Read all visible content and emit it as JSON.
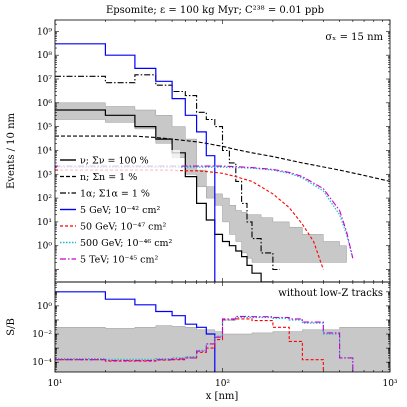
{
  "chart_data": [
    {
      "type": "line",
      "title": "Epsomite; ε = 100 kg Myr; C²³⁸ = 0.01 ppb",
      "annotation": "σₓ = 15 nm",
      "ylabel": "Events / 10 nm",
      "xscale": "log",
      "yscale": "log",
      "xlim": [
        10,
        1000
      ],
      "ylim": [
        0.03,
        3000000000
      ],
      "yticks": [
        {
          "v": 1,
          "t": "10⁰"
        },
        {
          "v": 10,
          "t": "10¹"
        },
        {
          "v": 100,
          "t": "10²"
        },
        {
          "v": 1000,
          "t": "10³"
        },
        {
          "v": 10000,
          "t": "10⁴"
        },
        {
          "v": 100000,
          "t": "10⁵"
        },
        {
          "v": 1000000,
          "t": "10⁶"
        },
        {
          "v": 10000000,
          "t": "10⁷"
        },
        {
          "v": 100000000,
          "t": "10⁸"
        },
        {
          "v": 1000000000,
          "t": "10⁹"
        }
      ],
      "legend": "middle-left",
      "series": [
        {
          "name": "ν; Σν = 100 %",
          "color": "#000000",
          "dash": "",
          "width": 1.2,
          "step": true,
          "x": [
            10,
            20,
            30,
            40,
            50,
            60,
            70,
            80,
            90,
            100,
            110,
            120,
            130,
            140,
            150,
            170,
            200
          ],
          "y": [
            500000,
            300000,
            100000,
            30000,
            8000,
            800,
            60,
            12,
            3,
            1.5,
            1.0,
            0.6,
            0.35,
            0.15,
            0.07,
            0.03,
            0.01
          ]
        },
        {
          "name": "n; Σn = 1 %",
          "color": "#000000",
          "dash": "4,2",
          "width": 1.1,
          "x": [
            10,
            20,
            30,
            40,
            50,
            60,
            70,
            80,
            90,
            100,
            120,
            150,
            200,
            300,
            500,
            700,
            1000
          ],
          "y": [
            40000,
            40000,
            40000,
            35000,
            30000,
            26000,
            23000,
            20000,
            17000,
            15000,
            11000,
            8000,
            5500,
            3000,
            1500,
            900,
            500
          ]
        },
        {
          "name": "1α; Σ1α = 1 %",
          "color": "#000000",
          "dash": "6,2,1.5,2",
          "width": 1.1,
          "step": true,
          "x": [
            10,
            20,
            30,
            40,
            50,
            60,
            70,
            80,
            90,
            100,
            110,
            120,
            130,
            140,
            150,
            170,
            200
          ],
          "y": [
            13000000,
            7000000,
            15000000,
            5500000,
            3000000,
            2000000,
            400000,
            200000,
            100000,
            10000,
            3000,
            500,
            60,
            10,
            2,
            0.5,
            0.1
          ]
        },
        {
          "name": "5 GeV; 10⁻⁴² cm²",
          "color": "#0000ff",
          "dash": "",
          "width": 1.2,
          "step": true,
          "x": [
            10,
            20,
            30,
            40,
            50,
            60,
            70,
            80,
            90
          ],
          "y": [
            300000000,
            100000000,
            28000000,
            8000000,
            1500000,
            300000,
            60000,
            6000,
            0.01
          ]
        },
        {
          "name": "50 GeV; 10⁻⁴⁷ cm²",
          "color": "#ff0000",
          "dash": "3,2",
          "width": 1.1,
          "x": [
            10,
            20,
            30,
            40,
            50,
            60,
            70,
            80,
            90,
            100,
            120,
            150,
            200,
            250,
            300,
            350,
            400
          ],
          "y": [
            1500,
            1500,
            1500,
            1500,
            1500,
            1400,
            1400,
            1300,
            1200,
            1100,
            800,
            500,
            150,
            40,
            8,
            1.5,
            0.1
          ]
        },
        {
          "name": "500 GeV; 10⁻⁴⁶ cm²",
          "color": "#17becf",
          "dash": "1.5,1.5",
          "width": 1.2,
          "x": [
            10,
            20,
            30,
            40,
            50,
            60,
            70,
            80,
            90,
            100,
            120,
            150,
            200,
            250,
            300,
            400,
            500,
            550,
            600
          ],
          "y": [
            2000,
            2000,
            2000,
            2000,
            2000,
            2000,
            2000,
            2000,
            2000,
            2000,
            1900,
            1800,
            1500,
            1100,
            700,
            200,
            20,
            3,
            0.3
          ]
        },
        {
          "name": "5 TeV; 10⁻⁴⁵ cm²",
          "color": "#cc00cc",
          "dash": "6,2,1.5,2",
          "width": 1.1,
          "x": [
            10,
            20,
            30,
            40,
            50,
            60,
            70,
            80,
            90,
            100,
            120,
            150,
            200,
            250,
            300,
            400,
            500,
            550,
            600
          ],
          "y": [
            2200,
            2200,
            2200,
            2200,
            2200,
            2200,
            2200,
            2200,
            2200,
            2200,
            2100,
            1900,
            1600,
            1200,
            800,
            250,
            30,
            4,
            0.3
          ]
        }
      ],
      "band": {
        "x": [
          10,
          20,
          30,
          40,
          50,
          60,
          70,
          80,
          90,
          100,
          110,
          120,
          130,
          140,
          150,
          170,
          200,
          250,
          300,
          400,
          500
        ],
        "lo": [
          200000,
          150000,
          80000,
          20000,
          5000,
          1000,
          300,
          100,
          50,
          10,
          3,
          1.5,
          0.5,
          0.3,
          0.2,
          0.2,
          0.2,
          0.2,
          0.2,
          0.2,
          0.2
        ],
        "hi": [
          1000000,
          700000,
          500000,
          300000,
          100000,
          30000,
          1500,
          300,
          150,
          100,
          50,
          30,
          25,
          20,
          20,
          15,
          10,
          6,
          3,
          1.5,
          1
        ],
        "color": "#c8c8c8"
      }
    },
    {
      "type": "line",
      "ylabel": "S/B",
      "xlabel": "x [nm]",
      "annotation": "without low-Z tracks",
      "xscale": "log",
      "yscale": "log",
      "xlim": [
        10,
        1000
      ],
      "ylim": [
        2e-05,
        50
      ],
      "yticks": [
        {
          "v": 0.0001,
          "t": "10⁻⁴"
        },
        {
          "v": 0.01,
          "t": "10⁻²"
        },
        {
          "v": 1,
          "t": "10⁰"
        }
      ],
      "xticks": [
        {
          "v": 10,
          "t": "10¹"
        },
        {
          "v": 100,
          "t": "10²"
        },
        {
          "v": 1000,
          "t": "10³"
        }
      ],
      "series": [
        {
          "name": "5 GeV; 10⁻⁴² cm²",
          "color": "#0000ff",
          "dash": "",
          "width": 1.2,
          "step": true,
          "x": [
            10,
            20,
            30,
            40,
            50,
            60,
            70,
            80,
            90
          ],
          "y": [
            10,
            3,
            1.2,
            0.4,
            0.2,
            0.05,
            0.03,
            0.01,
            1e-05
          ]
        },
        {
          "name": "50 GeV; 10⁻⁴⁷ cm²",
          "color": "#ff0000",
          "dash": "3,2",
          "width": 1.1,
          "step": true,
          "x": [
            10,
            20,
            30,
            40,
            50,
            60,
            70,
            80,
            90,
            100,
            120,
            150,
            200,
            250,
            300,
            400
          ],
          "y": [
            0.00015,
            0.00012,
            0.00012,
            0.00014,
            0.00015,
            0.0002,
            0.0005,
            0.001,
            0.004,
            0.1,
            0.12,
            0.09,
            0.03,
            0.003,
            0.00015,
            1e-05
          ]
        },
        {
          "name": "500 GeV; 10⁻⁴⁶ cm²",
          "color": "#17becf",
          "dash": "1.5,1.5",
          "width": 1.2,
          "step": true,
          "x": [
            10,
            20,
            30,
            40,
            50,
            60,
            70,
            80,
            90,
            100,
            120,
            150,
            200,
            250,
            300,
            400,
            500,
            600
          ],
          "y": [
            0.00018,
            0.00016,
            0.00016,
            0.00018,
            0.0002,
            0.00025,
            0.0007,
            0.002,
            0.007,
            0.1,
            0.15,
            0.15,
            0.13,
            0.1,
            0.06,
            0.01,
            0.0002,
            1e-05
          ]
        },
        {
          "name": "5 TeV; 10⁻⁴⁵ cm²",
          "color": "#cc00cc",
          "dash": "6,2,1.5,2",
          "width": 1.1,
          "step": true,
          "x": [
            10,
            20,
            30,
            40,
            50,
            60,
            70,
            80,
            90,
            100,
            120,
            150,
            200,
            250,
            300,
            400,
            500,
            600
          ],
          "y": [
            0.00015,
            0.00013,
            0.00013,
            0.00015,
            0.00017,
            0.0002,
            0.0006,
            0.002,
            0.006,
            0.12,
            0.18,
            0.17,
            0.15,
            0.12,
            0.07,
            0.012,
            0.0002,
            1e-05
          ]
        }
      ],
      "band": {
        "x": [
          10,
          20,
          30,
          40,
          50,
          60,
          70,
          80,
          90,
          100,
          120,
          150,
          200,
          300,
          500,
          1000
        ],
        "lo": [
          2e-05,
          2e-05,
          2e-05,
          2e-05,
          2e-05,
          2e-05,
          2e-05,
          2e-05,
          2e-05,
          2e-05,
          2e-05,
          2e-05,
          2e-05,
          2e-05,
          2e-05,
          2e-05
        ],
        "hi": [
          0.03,
          0.025,
          0.03,
          0.04,
          0.035,
          0.03,
          0.02,
          0.02,
          0.015,
          0.01,
          0.01,
          0.012,
          0.015,
          0.02,
          0.03,
          0.04
        ],
        "color": "#c8c8c8"
      }
    }
  ]
}
